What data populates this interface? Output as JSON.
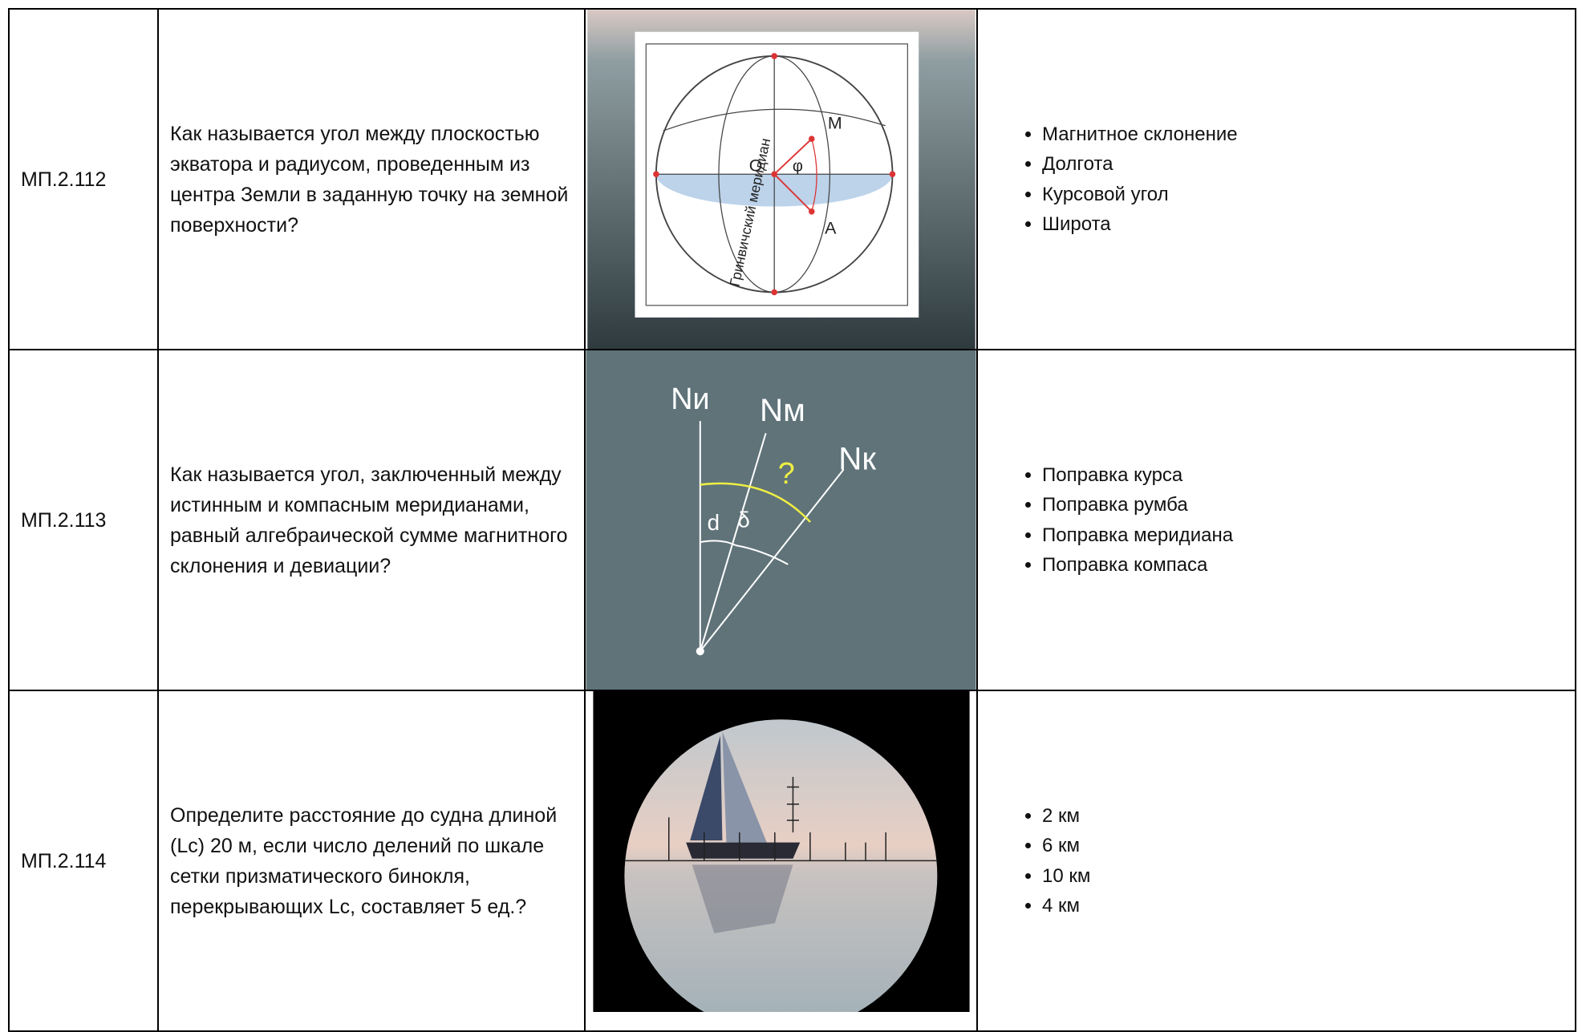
{
  "table": {
    "rows": [
      {
        "code": "МП.2.112",
        "question": "Как называется угол между плоскостью экватора и радиусом, проведенным из центра Земли в заданную точку на земной поверхности?",
        "figure": {
          "labels": [
            "М",
            "О",
            "φ",
            "А",
            "Гринвичский меридиан"
          ]
        },
        "answers": [
          "Магнитное склонение",
          "Долгота",
          "Курсовой угол",
          "Широта"
        ]
      },
      {
        "code": "МП.2.113",
        "question": "Как называется угол, заключенный между истинным и компасным меридианами, равный алгебраической сумме магнитного склонения и девиации?",
        "figure": {
          "labels": [
            "Nи",
            "Nм",
            "Nк",
            "?",
            "d",
            "δ"
          ]
        },
        "answers": [
          "Поправка курса",
          "Поправка румба",
          "Поправка меридиана",
          "Поправка компаса"
        ]
      },
      {
        "code": "МП.2.114",
        "question": "Определите расстояние до судна длиной (Lc) 20 м, если число делений по шкале сетки призматического бинокля, перекрывающих Lc, составляет 5 ед.?",
        "answers": [
          "2 км",
          "6 км",
          "10 км",
          "4 км"
        ]
      }
    ]
  }
}
